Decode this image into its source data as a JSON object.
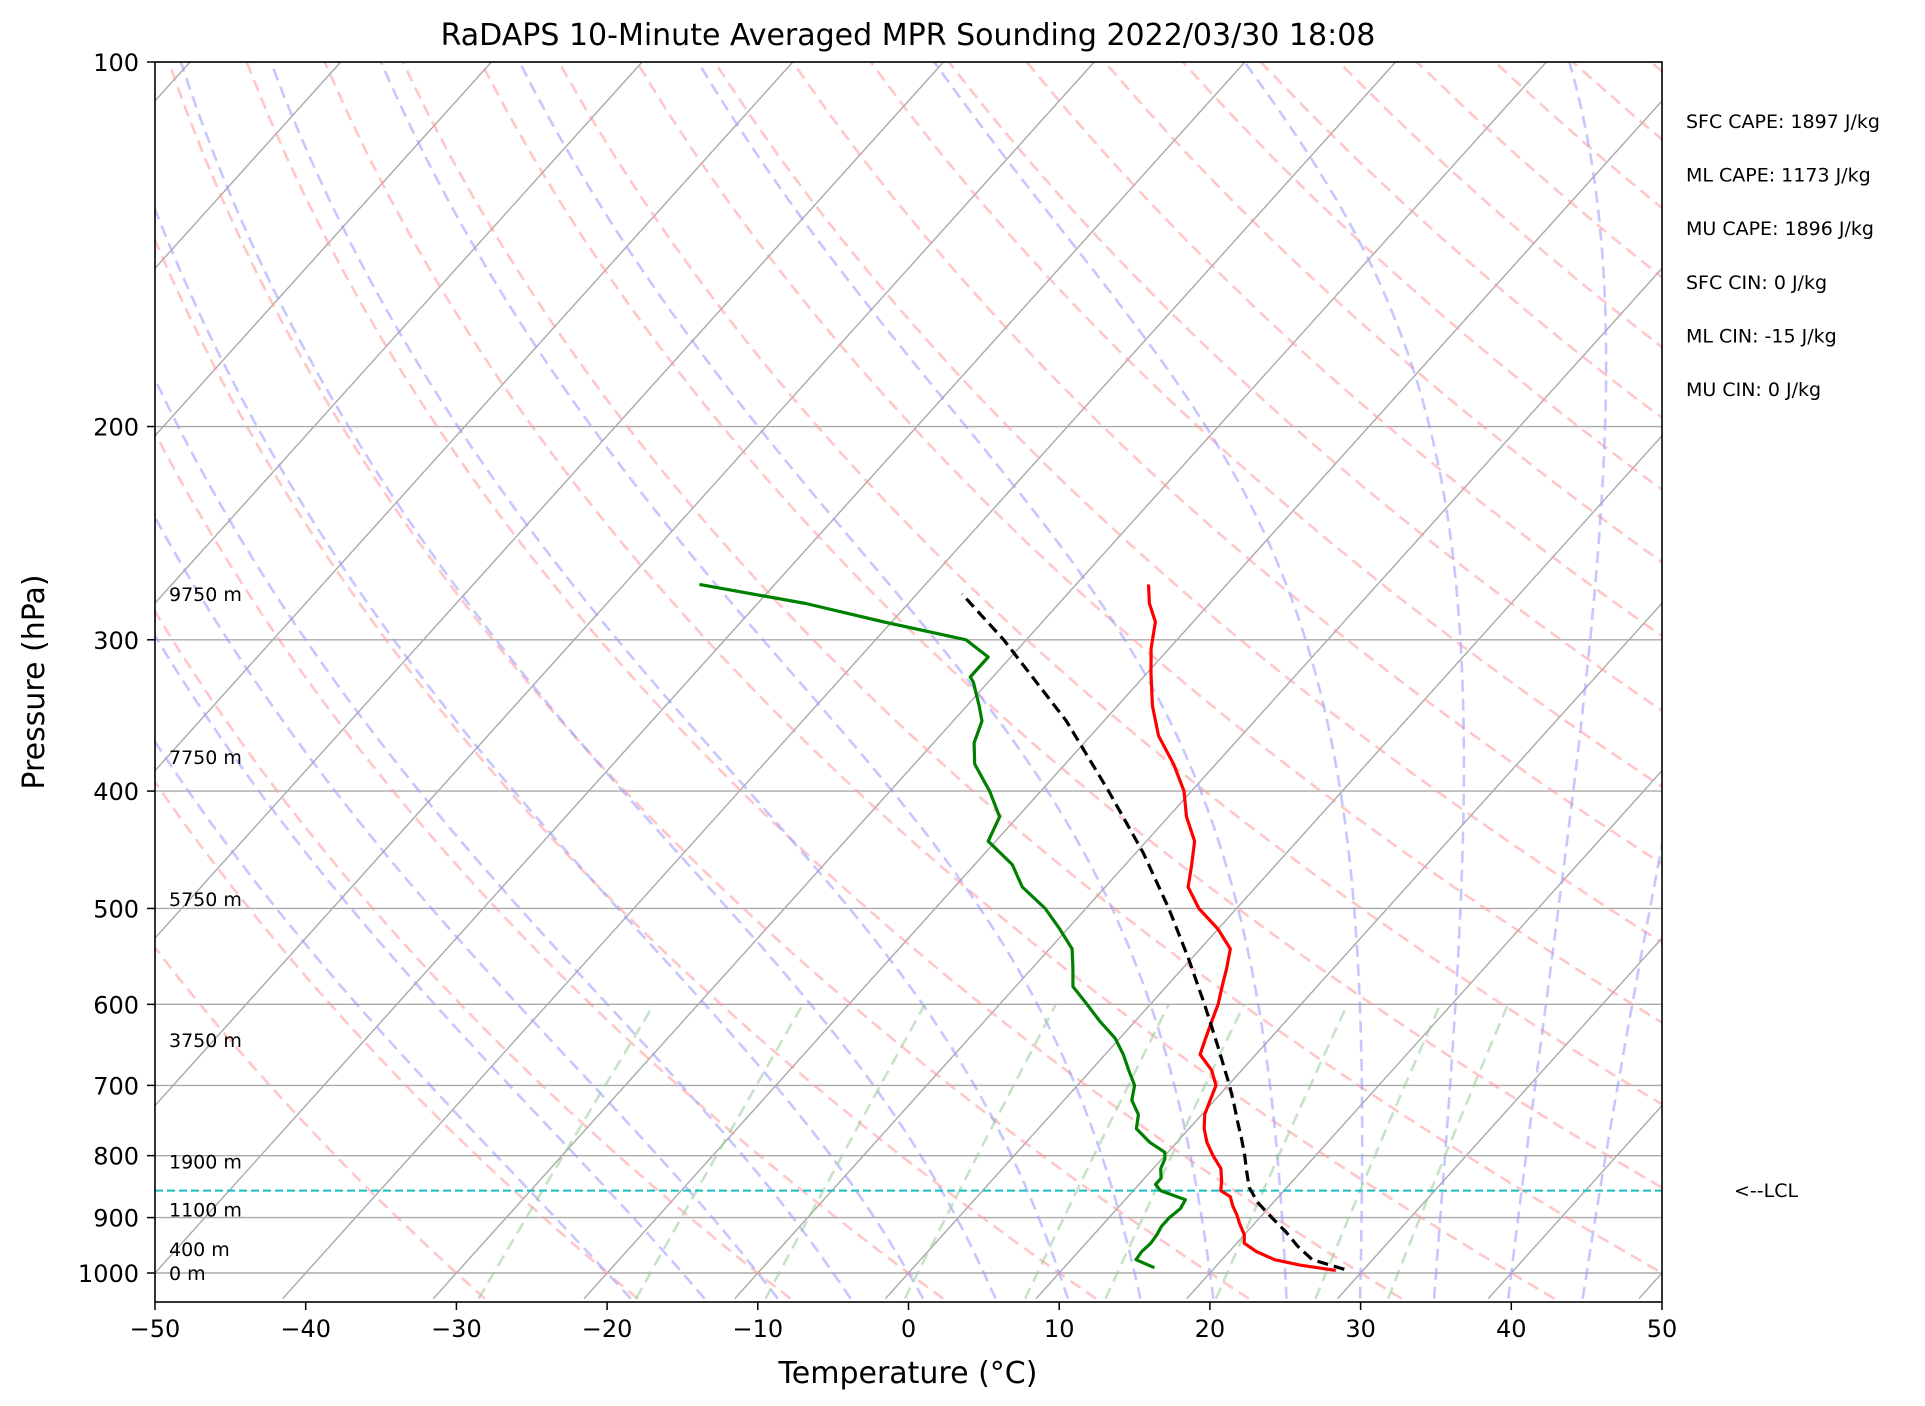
{
  "chart_data": {
    "type": "line",
    "subtype": "skew-t log-p",
    "title": "RaDAPS 10-Minute Averaged MPR Sounding 2022/03/30 18:08",
    "xlabel": "Temperature (°C)",
    "ylabel": "Pressure (hPa)",
    "xlim": [
      -50,
      50
    ],
    "ylim": [
      1050,
      100
    ],
    "y_scale": "log",
    "grid": true,
    "x_ticks": [
      -50,
      -40,
      -30,
      -20,
      -10,
      0,
      10,
      20,
      30,
      40,
      50
    ],
    "x_tick_labels": [
      "−50",
      "−40",
      "−30",
      "−20",
      "−10",
      "0",
      "10",
      "20",
      "30",
      "40",
      "50"
    ],
    "y_ticks": [
      1000,
      900,
      800,
      700,
      600,
      500,
      400,
      300,
      200,
      100
    ],
    "y_tick_labels": [
      "1000",
      "900",
      "800",
      "700",
      "600",
      "500",
      "400",
      "300",
      "200",
      "100"
    ],
    "series": [
      {
        "role": "temperature",
        "color": "#ff0000",
        "style": "solid",
        "pressure": [
          995,
          985,
          975,
          960,
          945,
          930,
          910,
          895,
          880,
          865,
          855,
          840,
          820,
          800,
          780,
          760,
          740,
          720,
          700,
          680,
          660,
          640,
          620,
          600,
          580,
          560,
          540,
          520,
          500,
          480,
          460,
          440,
          420,
          400,
          380,
          360,
          340,
          320,
          305,
          290,
          280,
          270
        ],
        "values": [
          28.2,
          25.5,
          23.5,
          21.8,
          20.5,
          20.0,
          19.0,
          18.3,
          17.5,
          16.8,
          15.8,
          15.3,
          14.5,
          13.2,
          12.0,
          11.0,
          10.2,
          9.7,
          9.2,
          8.0,
          6.3,
          5.7,
          5.1,
          4.5,
          3.7,
          2.9,
          2.0,
          0.0,
          -2.5,
          -4.5,
          -5.6,
          -6.8,
          -8.8,
          -10.5,
          -12.8,
          -15.5,
          -17.7,
          -19.7,
          -21.2,
          -22.5,
          -24.0,
          -25.2
        ]
      },
      {
        "role": "dewpoint",
        "color": "#008000",
        "style": "solid",
        "pressure": [
          990,
          975,
          960,
          945,
          930,
          915,
          900,
          885,
          870,
          855,
          845,
          835,
          820,
          805,
          795,
          780,
          760,
          740,
          720,
          700,
          680,
          660,
          640,
          620,
          600,
          580,
          560,
          540,
          520,
          500,
          480,
          460,
          440,
          420,
          400,
          380,
          365,
          350,
          340,
          325,
          322,
          310,
          300,
          290,
          280,
          270
        ],
        "values": [
          16.0,
          14.3,
          14.2,
          14.3,
          14.2,
          14.0,
          14.0,
          14.2,
          14.0,
          11.8,
          11.1,
          11.1,
          10.5,
          10.2,
          9.8,
          8.2,
          6.5,
          5.8,
          4.5,
          3.8,
          2.5,
          1.2,
          -0.3,
          -2.3,
          -4.2,
          -6.2,
          -7.3,
          -8.5,
          -10.5,
          -12.7,
          -15.5,
          -17.5,
          -20.5,
          -21.2,
          -23.4,
          -26.0,
          -27.3,
          -28.1,
          -29.2,
          -31.0,
          -31.5,
          -31.5,
          -34.0,
          -40.5,
          -46.8,
          -55.0
        ]
      },
      {
        "role": "parcel-profile",
        "color": "#000000",
        "style": "dashed",
        "pressure": [
          993,
          975,
          950,
          925,
          900,
          875,
          850,
          825,
          800,
          775,
          750,
          725,
          700,
          650,
          600,
          550,
          500,
          450,
          400,
          350,
          300,
          275
        ],
        "values": [
          28.7,
          26.0,
          24.2,
          22.6,
          20.8,
          19.0,
          17.5,
          16.4,
          15.3,
          14.1,
          12.8,
          11.5,
          10.1,
          7.0,
          3.6,
          -0.2,
          -4.5,
          -9.5,
          -15.5,
          -22.5,
          -31.5,
          -37.0
        ]
      }
    ],
    "lcl_pressure": 855,
    "lcl_label": "<--LCL",
    "height_labels": [
      {
        "text": "0 m",
        "pressure": 1000
      },
      {
        "text": "400 m",
        "pressure": 955
      },
      {
        "text": "1100 m",
        "pressure": 886
      },
      {
        "text": "1900 m",
        "pressure": 809
      },
      {
        "text": "3750 m",
        "pressure": 642
      },
      {
        "text": "5750 m",
        "pressure": 491
      },
      {
        "text": "7750 m",
        "pressure": 375
      },
      {
        "text": "9750 m",
        "pressure": 275
      }
    ],
    "annotations": [
      "SFC CAPE: 1897 J/kg",
      "ML CAPE: 1173 J/kg",
      "MU CAPE: 1896 J/kg",
      "SFC CIN: 0 J/kg",
      "ML CIN: -15 J/kg",
      "MU CIN: 0 J/kg"
    ],
    "background_lines": {
      "isotherms_color": "#aaaaaa",
      "dry_adiabats_color": "#ff9999",
      "moist_adiabats_color": "#9999ff",
      "mixing_ratio_color": "#99cc99",
      "lcl_line_color": "#17bfbf"
    }
  }
}
